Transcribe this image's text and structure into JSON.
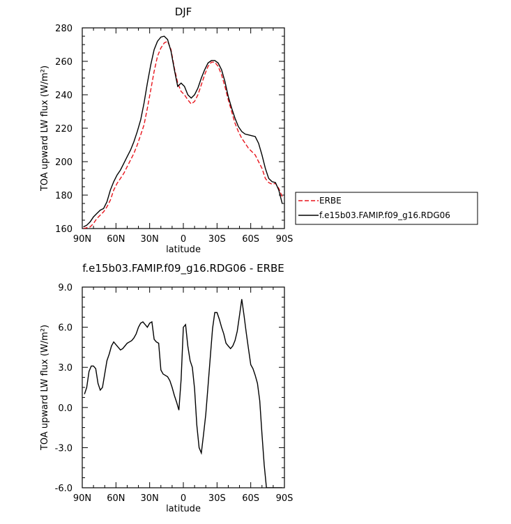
{
  "chart_data": [
    {
      "type": "line",
      "title": "DJF",
      "xlabel": "latitude",
      "ylabel": "TOA upward LW flux (W/m²)",
      "ylim": [
        160,
        280
      ],
      "xlim": [
        90,
        -90
      ],
      "x_ticks": [
        90,
        60,
        30,
        0,
        -30,
        -60,
        -90
      ],
      "x_tick_labels": [
        "90N",
        "60N",
        "30N",
        "0",
        "30S",
        "60S",
        "90S"
      ],
      "y_ticks": [
        160,
        180,
        200,
        220,
        240,
        260,
        280
      ],
      "y_tick_labels": [
        "160",
        "180",
        "200",
        "220",
        "240",
        "260",
        "280"
      ],
      "legend": "right",
      "grid": false,
      "series": [
        {
          "name": "ERBE",
          "style": "dashed",
          "color": "#e8141c",
          "x": [
            89,
            86,
            83,
            80,
            77,
            74,
            71,
            68,
            65,
            62,
            59,
            56,
            53,
            50,
            47,
            44,
            41,
            38,
            35,
            32,
            29,
            26,
            23,
            20,
            17,
            14,
            11,
            8,
            5,
            2,
            -1,
            -4,
            -7,
            -10,
            -13,
            -16,
            -19,
            -22,
            -25,
            -28,
            -31,
            -34,
            -37,
            -40,
            -43,
            -46,
            -49,
            -52,
            -55,
            -58,
            -61,
            -64,
            -67,
            -70,
            -73,
            -76,
            -79,
            -82,
            -85,
            -88
          ],
          "y": [
            160,
            160.5,
            161,
            163,
            166,
            168,
            170,
            173,
            177,
            183,
            187,
            190,
            193,
            197,
            201,
            205,
            210,
            216,
            222,
            232,
            243,
            254,
            263,
            268,
            271,
            272,
            267,
            256,
            247,
            242,
            240,
            237,
            234.5,
            236,
            240,
            246,
            252,
            257,
            259.5,
            259.5,
            257,
            252,
            245,
            237,
            230,
            223,
            218,
            214,
            211,
            208,
            206,
            204,
            200,
            196,
            190,
            187.5,
            186.5,
            187,
            184,
            179
          ]
        },
        {
          "name": "f.e15b03.FAMIP.f09_g16.RDG06",
          "style": "solid",
          "color": "#000000",
          "x": [
            89,
            86,
            83,
            80,
            77,
            74,
            71,
            68,
            65,
            62,
            59,
            56,
            53,
            50,
            47,
            44,
            41,
            38,
            35,
            32,
            29,
            26,
            23,
            20,
            17,
            14,
            11,
            8,
            5,
            2,
            -1,
            -4,
            -7,
            -10,
            -13,
            -16,
            -19,
            -22,
            -25,
            -28,
            -31,
            -34,
            -37,
            -40,
            -43,
            -46,
            -49,
            -52,
            -55,
            -58,
            -61,
            -64,
            -67,
            -70,
            -73,
            -76,
            -79,
            -82,
            -85,
            -88
          ],
          "y": [
            161,
            162,
            164,
            167,
            169,
            171,
            172,
            176,
            183,
            188,
            192,
            195,
            199,
            203,
            207,
            212,
            218,
            225,
            235,
            247,
            258,
            267,
            272,
            274.5,
            275,
            273,
            266,
            255,
            245,
            247,
            245,
            240,
            238,
            240,
            244,
            250,
            255,
            259,
            260.5,
            260.5,
            259,
            255,
            248,
            239,
            232,
            226,
            221,
            218,
            216.5,
            216,
            215.5,
            215,
            211,
            204,
            196,
            190,
            188,
            187.5,
            183,
            175
          ]
        }
      ]
    },
    {
      "type": "line",
      "title": "f.e15b03.FAMIP.f09_g16.RDG06 - ERBE",
      "xlabel": "latitude",
      "ylabel": "TOA upward LW flux (W/m²)",
      "ylim": [
        -6,
        9
      ],
      "xlim": [
        90,
        -90
      ],
      "x_ticks": [
        90,
        60,
        30,
        0,
        -30,
        -60,
        -90
      ],
      "x_tick_labels": [
        "90N",
        "60N",
        "30N",
        "0",
        "30S",
        "60S",
        "90S"
      ],
      "y_ticks": [
        -6,
        -3,
        0,
        3,
        6,
        9
      ],
      "y_tick_labels": [
        "-6.0",
        "-3.0",
        "0.0",
        "3.0",
        "6.0",
        "9.0"
      ],
      "grid": false,
      "series": [
        {
          "style": "solid",
          "color": "#000000",
          "x": [
            88,
            86,
            84,
            82,
            80,
            78,
            76,
            74,
            72,
            70,
            68,
            66,
            64,
            62,
            60,
            58,
            56,
            54,
            52,
            50,
            48,
            46,
            44,
            42,
            40,
            38,
            36,
            34,
            32,
            30,
            28,
            26,
            24,
            22,
            20,
            18,
            16,
            14,
            12,
            10,
            8,
            6,
            4,
            2,
            0,
            -2,
            -4,
            -6,
            -8,
            -10,
            -12,
            -14,
            -16,
            -18,
            -20,
            -22,
            -24,
            -26,
            -28,
            -30,
            -32,
            -34,
            -36,
            -38,
            -40,
            -42,
            -44,
            -46,
            -48,
            -50,
            -52,
            -54,
            -56,
            -58,
            -60,
            -62,
            -64,
            -66,
            -68,
            -70,
            -72,
            -74,
            -76,
            -78,
            -80,
            -82,
            -84,
            -86,
            -88
          ],
          "y": [
            1.0,
            1.5,
            2.7,
            3.1,
            3.1,
            2.9,
            1.8,
            1.3,
            1.5,
            2.5,
            3.5,
            4.0,
            4.6,
            4.9,
            4.7,
            4.5,
            4.3,
            4.4,
            4.6,
            4.8,
            4.9,
            5.0,
            5.2,
            5.5,
            6.0,
            6.3,
            6.4,
            6.2,
            6.0,
            6.3,
            6.4,
            5.1,
            4.9,
            4.8,
            2.8,
            2.5,
            2.4,
            2.3,
            2.0,
            1.5,
            0.9,
            0.4,
            -0.2,
            2.1,
            6.0,
            6.2,
            4.6,
            3.5,
            3.0,
            1.4,
            -1.3,
            -3.0,
            -3.4,
            -2.0,
            -0.5,
            1.6,
            3.8,
            5.9,
            7.1,
            7.1,
            6.6,
            6.0,
            5.5,
            4.8,
            4.6,
            4.4,
            4.6,
            5.0,
            5.7,
            6.9,
            8.1,
            6.9,
            5.6,
            4.4,
            3.2,
            2.9,
            2.4,
            1.8,
            0.5,
            -2.0,
            -4.3,
            -6.0,
            -6.0,
            -6.0,
            -6.0,
            -6.0,
            -6.0,
            -6.0,
            -6.0
          ]
        }
      ]
    }
  ]
}
